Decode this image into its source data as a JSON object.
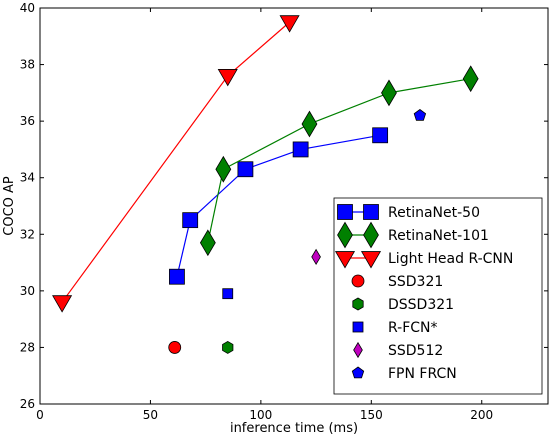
{
  "chart_data": {
    "type": "scatter",
    "xlabel": "inference time (ms)",
    "ylabel": "COCO AP",
    "xlim": [
      0,
      230
    ],
    "ylim": [
      26,
      40
    ],
    "xticks": [
      "0",
      "50",
      "100",
      "150",
      "200"
    ],
    "yticks": [
      "26",
      "28",
      "30",
      "32",
      "34",
      "36",
      "38",
      "40"
    ],
    "grid": false,
    "legend_position": "lower-right",
    "series": [
      {
        "name": "RetinaNet-50",
        "color": "#0000ff",
        "marker": "square",
        "line": true,
        "points": [
          [
            62,
            30.5
          ],
          [
            68,
            32.5
          ],
          [
            93,
            34.3
          ],
          [
            118,
            35.0
          ],
          [
            154,
            35.5
          ]
        ]
      },
      {
        "name": "RetinaNet-101",
        "color": "#008000",
        "marker": "diamond",
        "line": true,
        "points": [
          [
            76,
            31.7
          ],
          [
            83,
            34.3
          ],
          [
            122,
            35.9
          ],
          [
            158,
            37.0
          ],
          [
            195,
            37.5
          ]
        ]
      },
      {
        "name": "Light Head R-CNN",
        "color": "#ff0000",
        "marker": "triangle-down",
        "line": true,
        "points": [
          [
            10,
            29.6
          ],
          [
            85,
            37.6
          ],
          [
            113,
            39.5
          ]
        ]
      },
      {
        "name": "SSD321",
        "color": "#ff0000",
        "marker": "circle",
        "line": false,
        "points": [
          [
            61,
            28.0
          ]
        ]
      },
      {
        "name": "DSSD321",
        "color": "#008000",
        "marker": "hexagon",
        "line": false,
        "points": [
          [
            85,
            28.0
          ]
        ]
      },
      {
        "name": "R-FCN*",
        "color": "#0000ff",
        "marker": "square",
        "line": false,
        "points": [
          [
            85,
            29.9
          ]
        ]
      },
      {
        "name": "SSD512",
        "color": "#bf00bf",
        "marker": "diamond",
        "line": false,
        "points": [
          [
            125,
            31.2
          ]
        ]
      },
      {
        "name": "FPN FRCN",
        "color": "#0000ff",
        "marker": "pentagon",
        "line": false,
        "points": [
          [
            172,
            36.2
          ]
        ]
      }
    ]
  }
}
